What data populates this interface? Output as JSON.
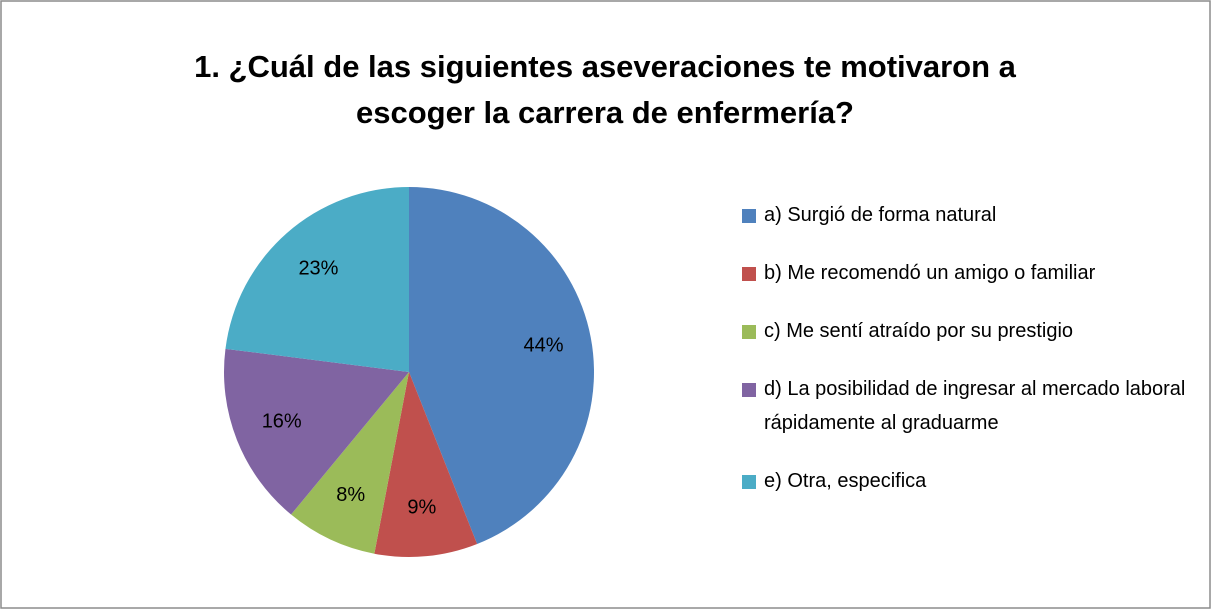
{
  "chart_data": {
    "type": "pie",
    "title": "1.   ¿Cuál de las siguientes aseveraciones te motivaron a escoger la carrera de enfermería?",
    "categories": [
      "a) Surgió de forma natural",
      "b) Me recomendó un amigo o familiar",
      "c) Me sentí atraído por su prestigio",
      "d) La posibilidad de ingresar al mercado laboral rápidamente al graduarme",
      "e) Otra, especifica"
    ],
    "values": [
      44,
      9,
      8,
      16,
      23
    ],
    "value_labels": [
      "44%",
      "9%",
      "8%",
      "16%",
      "23%"
    ],
    "colors": [
      "#4f81bd",
      "#c0504d",
      "#9bbb59",
      "#8064a2",
      "#4bacc6"
    ],
    "legend": "right"
  }
}
